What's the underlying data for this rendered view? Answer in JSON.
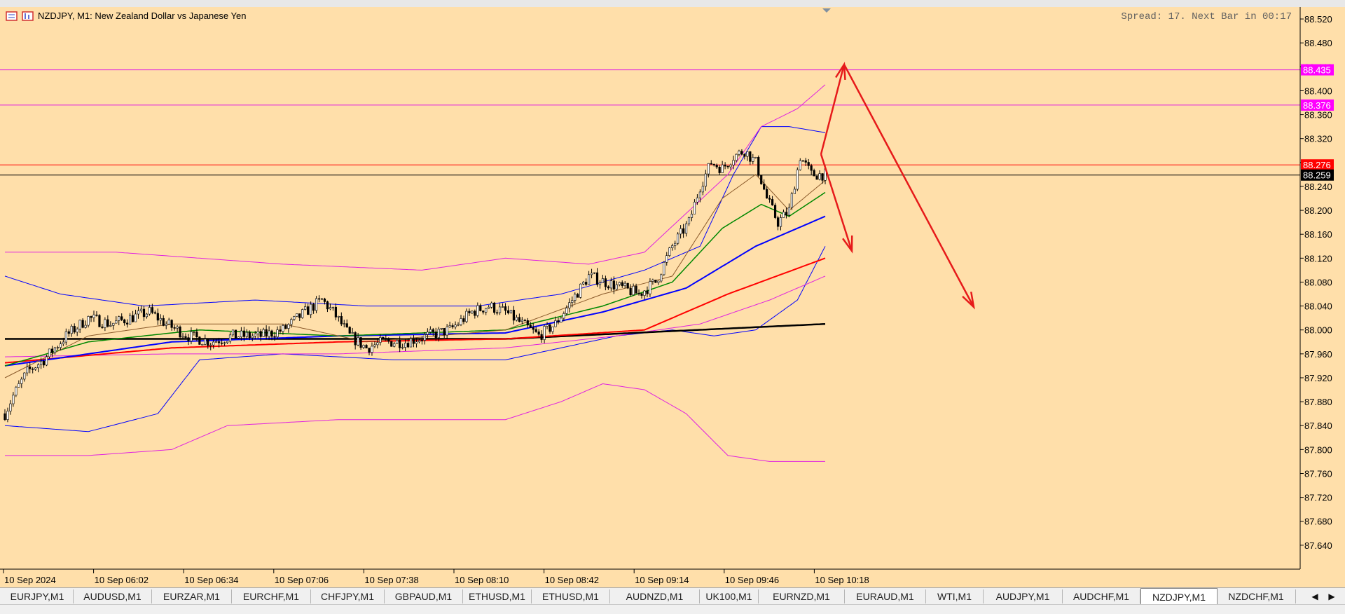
{
  "window": {
    "symbol_line": "NZDJPY, M1:  New Zealand Dollar vs Japanese Yen",
    "spread_info": "Spread: 17. Next Bar in 00:17"
  },
  "tabs": {
    "items": [
      "EURJPY,M1",
      "AUDUSD,M1",
      "EURZAR,M1",
      "EURCHF,M1",
      "CHFJPY,M1",
      "GBPAUD,M1",
      "ETHUSD,M1",
      "ETHUSD,M1",
      "AUDNZD,M1",
      "UK100,M1",
      "EURNZD,M1",
      "EURAUD,M1",
      "WTI,M1",
      "AUDJPY,M1",
      "AUDCHF,M1",
      "NZDJPY,M1",
      "NZDCHF,M1"
    ],
    "active": "NZDJPY,M1",
    "prev_glyph": "◀",
    "next_glyph": "▶"
  },
  "colors": {
    "background": "#ffdfaa",
    "candle": "#000000",
    "magenta": "#e020e0",
    "blue_band": "#2030d0",
    "red_line": "#ff0000",
    "black_ma": "#000000",
    "green_ma": "#008800",
    "blue_ma": "#0000ff",
    "red_ma": "#ff0000",
    "arrow": "#e61a1a"
  },
  "chart_data": {
    "type": "candlestick",
    "symbol": "NZDJPY",
    "timeframe": "M1",
    "y_range": [
      87.6,
      88.54
    ],
    "y_ticks": [
      "88.520",
      "88.480",
      "88.440",
      "88.400",
      "88.360",
      "88.320",
      "88.280",
      "88.240",
      "88.200",
      "88.160",
      "88.120",
      "88.080",
      "88.040",
      "88.000",
      "87.960",
      "87.920",
      "87.880",
      "87.840",
      "87.800",
      "87.760",
      "87.720",
      "87.680",
      "87.640"
    ],
    "x_labels": [
      "10 Sep 2024",
      "10 Sep 06:02",
      "10 Sep 06:34",
      "10 Sep 07:06",
      "10 Sep 07:38",
      "10 Sep 08:10",
      "10 Sep 08:42",
      "10 Sep 09:14",
      "10 Sep 09:46",
      "10 Sep 10:18"
    ],
    "bars_shown": 296,
    "price_levels": [
      {
        "label": "88.435",
        "value": 88.435,
        "color": "#e020e0",
        "tag_bg": "#ff00ff"
      },
      {
        "label": "88.376",
        "value": 88.376,
        "color": "#e020e0",
        "tag_bg": "#ff00ff"
      },
      {
        "label": "88.276",
        "value": 88.276,
        "color": "#ff0000",
        "tag_bg": "#ff0000"
      },
      {
        "label": "88.259",
        "value": 88.259,
        "color": "#000000",
        "tag_bg": "#000000"
      }
    ],
    "close_anchors": [
      [
        0,
        87.86
      ],
      [
        3,
        87.89
      ],
      [
        8,
        87.93
      ],
      [
        14,
        87.95
      ],
      [
        22,
        87.99
      ],
      [
        30,
        88.02
      ],
      [
        38,
        88.01
      ],
      [
        45,
        88.02
      ],
      [
        52,
        88.03
      ],
      [
        58,
        88.01
      ],
      [
        66,
        87.99
      ],
      [
        74,
        87.98
      ],
      [
        82,
        87.99
      ],
      [
        92,
        87.99
      ],
      [
        100,
        88.0
      ],
      [
        108,
        88.03
      ],
      [
        114,
        88.05
      ],
      [
        118,
        88.03
      ],
      [
        124,
        87.99
      ],
      [
        130,
        87.97
      ],
      [
        136,
        87.98
      ],
      [
        144,
        87.98
      ],
      [
        152,
        87.99
      ],
      [
        160,
        88.0
      ],
      [
        168,
        88.03
      ],
      [
        174,
        88.04
      ],
      [
        180,
        88.03
      ],
      [
        186,
        88.01
      ],
      [
        192,
        87.99
      ],
      [
        198,
        88.01
      ],
      [
        204,
        88.05
      ],
      [
        210,
        88.09
      ],
      [
        216,
        88.08
      ],
      [
        222,
        88.07
      ],
      [
        228,
        88.06
      ],
      [
        234,
        88.08
      ],
      [
        240,
        88.14
      ],
      [
        246,
        88.18
      ],
      [
        250,
        88.24
      ],
      [
        254,
        88.28
      ],
      [
        258,
        88.27
      ],
      [
        262,
        88.29
      ],
      [
        266,
        88.3
      ],
      [
        270,
        88.28
      ],
      [
        274,
        88.22
      ],
      [
        278,
        88.18
      ],
      [
        282,
        88.2
      ],
      [
        286,
        88.29
      ],
      [
        290,
        88.26
      ],
      [
        295,
        88.26
      ]
    ],
    "moving_averages": [
      {
        "color": "black",
        "width": 2.5,
        "anchors": [
          [
            0,
            87.985
          ],
          [
            100,
            87.985
          ],
          [
            180,
            87.985
          ],
          [
            295,
            88.01
          ]
        ]
      },
      {
        "color": "red",
        "width": 2,
        "anchors": [
          [
            0,
            87.945
          ],
          [
            60,
            87.97
          ],
          [
            120,
            87.98
          ],
          [
            180,
            87.985
          ],
          [
            230,
            88.0
          ],
          [
            260,
            88.06
          ],
          [
            295,
            88.12
          ]
        ]
      },
      {
        "color": "blue",
        "width": 2,
        "anchors": [
          [
            0,
            87.94
          ],
          [
            60,
            87.98
          ],
          [
            120,
            87.99
          ],
          [
            180,
            87.995
          ],
          [
            215,
            88.03
          ],
          [
            245,
            88.07
          ],
          [
            270,
            88.14
          ],
          [
            295,
            88.19
          ]
        ]
      },
      {
        "color": "green",
        "width": 1.5,
        "anchors": [
          [
            0,
            87.94
          ],
          [
            30,
            87.98
          ],
          [
            70,
            88.0
          ],
          [
            120,
            87.99
          ],
          [
            180,
            88.0
          ],
          [
            215,
            88.04
          ],
          [
            240,
            88.08
          ],
          [
            258,
            88.17
          ],
          [
            272,
            88.21
          ],
          [
            282,
            88.19
          ],
          [
            295,
            88.23
          ]
        ]
      },
      {
        "color": "brown",
        "width": 1,
        "anchors": [
          [
            0,
            87.92
          ],
          [
            30,
            87.99
          ],
          [
            60,
            88.01
          ],
          [
            100,
            88.01
          ],
          [
            130,
            87.98
          ],
          [
            180,
            88.0
          ],
          [
            215,
            88.06
          ],
          [
            240,
            88.09
          ],
          [
            258,
            88.22
          ],
          [
            270,
            88.26
          ],
          [
            282,
            88.2
          ],
          [
            295,
            88.25
          ]
        ]
      }
    ],
    "bands": [
      {
        "color": "blue",
        "width": 1,
        "anchors": [
          [
            0,
            88.09
          ],
          [
            20,
            88.06
          ],
          [
            50,
            88.04
          ],
          [
            90,
            88.05
          ],
          [
            130,
            88.04
          ],
          [
            170,
            88.04
          ],
          [
            200,
            88.06
          ],
          [
            230,
            88.1
          ],
          [
            250,
            88.14
          ],
          [
            262,
            88.26
          ],
          [
            272,
            88.34
          ],
          [
            282,
            88.34
          ],
          [
            295,
            88.33
          ]
        ]
      },
      {
        "color": "blue",
        "width": 1,
        "anchors": [
          [
            0,
            87.84
          ],
          [
            30,
            87.83
          ],
          [
            55,
            87.86
          ],
          [
            70,
            87.95
          ],
          [
            100,
            87.96
          ],
          [
            140,
            87.95
          ],
          [
            180,
            87.95
          ],
          [
            200,
            87.97
          ],
          [
            220,
            87.99
          ],
          [
            240,
            88.0
          ],
          [
            255,
            87.99
          ],
          [
            270,
            88.0
          ],
          [
            285,
            88.05
          ],
          [
            295,
            88.14
          ]
        ]
      },
      {
        "color": "magenta",
        "width": 1,
        "anchors": [
          [
            0,
            88.13
          ],
          [
            40,
            88.13
          ],
          [
            70,
            88.12
          ],
          [
            100,
            88.11
          ],
          [
            150,
            88.1
          ],
          [
            180,
            88.12
          ],
          [
            210,
            88.11
          ],
          [
            230,
            88.13
          ],
          [
            260,
            88.26
          ],
          [
            272,
            88.34
          ],
          [
            285,
            88.37
          ],
          [
            295,
            88.41
          ]
        ]
      },
      {
        "color": "magenta",
        "width": 1,
        "anchors": [
          [
            0,
            87.79
          ],
          [
            30,
            87.79
          ],
          [
            60,
            87.8
          ],
          [
            80,
            87.84
          ],
          [
            120,
            87.85
          ],
          [
            180,
            87.85
          ],
          [
            200,
            87.88
          ],
          [
            215,
            87.91
          ],
          [
            230,
            87.9
          ],
          [
            245,
            87.86
          ],
          [
            260,
            87.79
          ],
          [
            275,
            87.78
          ],
          [
            295,
            87.78
          ]
        ]
      },
      {
        "color": "magenta",
        "width": 1,
        "anchors": [
          [
            0,
            87.955
          ],
          [
            60,
            87.96
          ],
          [
            120,
            87.96
          ],
          [
            180,
            87.97
          ],
          [
            220,
            87.99
          ],
          [
            250,
            88.01
          ],
          [
            275,
            88.05
          ],
          [
            295,
            88.09
          ]
        ]
      }
    ],
    "annotations": [
      {
        "type": "arrow",
        "from": [
          1172,
          210
        ],
        "to": [
          1205,
          82
        ]
      },
      {
        "type": "arrow",
        "from": [
          1205,
          82
        ],
        "to": [
          1390,
          428
        ]
      },
      {
        "type": "arrow",
        "from": [
          1172,
          210
        ],
        "to": [
          1216,
          348
        ]
      }
    ]
  }
}
